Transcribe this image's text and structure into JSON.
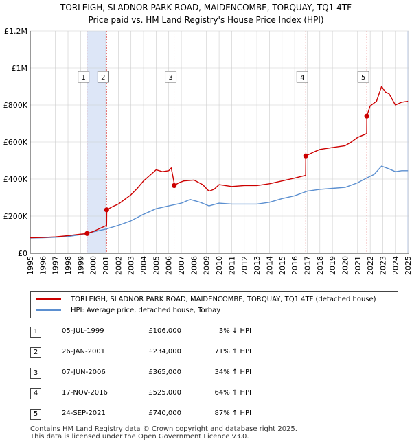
{
  "chart_data": {
    "type": "line",
    "title": "TORLEIGH, SLADNOR PARK ROAD, MAIDENCOMBE, TORQUAY, TQ1 4TF",
    "subtitle": "Price paid vs. HM Land Registry's House Price Index (HPI)",
    "xlabel": "",
    "ylabel": "",
    "xlim": [
      1995,
      2025.1
    ],
    "ylim": [
      0,
      1200000
    ],
    "x_ticks": [
      1995,
      1996,
      1997,
      1998,
      1999,
      2000,
      2001,
      2002,
      2003,
      2004,
      2005,
      2006,
      2007,
      2008,
      2009,
      2010,
      2011,
      2012,
      2013,
      2014,
      2015,
      2016,
      2017,
      2018,
      2019,
      2020,
      2021,
      2022,
      2023,
      2024,
      2025
    ],
    "y_ticks": [
      {
        "value": 0,
        "label": "£0"
      },
      {
        "value": 200000,
        "label": "£200K"
      },
      {
        "value": 400000,
        "label": "£400K"
      },
      {
        "value": 600000,
        "label": "£600K"
      },
      {
        "value": 800000,
        "label": "£800K"
      },
      {
        "value": 1000000,
        "label": "£1M"
      },
      {
        "value": 1200000,
        "label": "£1.2M"
      }
    ],
    "grid": true,
    "series": [
      {
        "name": "TORLEIGH, SLADNOR PARK ROAD, MAIDENCOMBE, TORQUAY, TQ1 4TF (detached house)",
        "color": "#cc0000",
        "points": [
          [
            1995,
            83000
          ],
          [
            1996,
            85000
          ],
          [
            1997,
            88000
          ],
          [
            1998,
            95000
          ],
          [
            1999,
            103000
          ],
          [
            1999.51,
            106000
          ],
          [
            2000,
            117000
          ],
          [
            2001.07,
            150000
          ],
          [
            2001.08,
            234000
          ],
          [
            2001.5,
            250000
          ],
          [
            2002,
            265000
          ],
          [
            2002.5,
            290000
          ],
          [
            2003,
            315000
          ],
          [
            2003.5,
            350000
          ],
          [
            2004,
            390000
          ],
          [
            2004.5,
            420000
          ],
          [
            2005,
            450000
          ],
          [
            2005.5,
            440000
          ],
          [
            2006,
            445000
          ],
          [
            2006.2,
            460000
          ],
          [
            2006.43,
            380000
          ],
          [
            2006.44,
            365000
          ],
          [
            2006.8,
            380000
          ],
          [
            2007.2,
            390000
          ],
          [
            2008,
            395000
          ],
          [
            2008.7,
            370000
          ],
          [
            2009.2,
            335000
          ],
          [
            2009.6,
            345000
          ],
          [
            2010,
            370000
          ],
          [
            2011,
            360000
          ],
          [
            2012,
            365000
          ],
          [
            2013,
            365000
          ],
          [
            2014,
            375000
          ],
          [
            2015,
            390000
          ],
          [
            2016,
            405000
          ],
          [
            2016.87,
            420000
          ],
          [
            2016.88,
            525000
          ],
          [
            2017.5,
            545000
          ],
          [
            2018,
            560000
          ],
          [
            2019,
            570000
          ],
          [
            2020,
            580000
          ],
          [
            2020.5,
            600000
          ],
          [
            2021,
            625000
          ],
          [
            2021.72,
            645000
          ],
          [
            2021.73,
            740000
          ],
          [
            2022,
            795000
          ],
          [
            2022.5,
            820000
          ],
          [
            2022.9,
            900000
          ],
          [
            2023.2,
            870000
          ],
          [
            2023.5,
            860000
          ],
          [
            2024,
            800000
          ],
          [
            2024.5,
            815000
          ],
          [
            2025,
            820000
          ]
        ]
      },
      {
        "name": "HPI: Average price, detached house, Torbay",
        "color": "#5b8fd0",
        "points": [
          [
            1995,
            82000
          ],
          [
            1996,
            83000
          ],
          [
            1997,
            86000
          ],
          [
            1998,
            90000
          ],
          [
            1999,
            100000
          ],
          [
            2000,
            115000
          ],
          [
            2001,
            130000
          ],
          [
            2002,
            150000
          ],
          [
            2003,
            175000
          ],
          [
            2004,
            210000
          ],
          [
            2005,
            240000
          ],
          [
            2006,
            255000
          ],
          [
            2007,
            270000
          ],
          [
            2007.7,
            290000
          ],
          [
            2008.5,
            275000
          ],
          [
            2009.2,
            255000
          ],
          [
            2010,
            270000
          ],
          [
            2011,
            265000
          ],
          [
            2012,
            265000
          ],
          [
            2013,
            265000
          ],
          [
            2014,
            275000
          ],
          [
            2015,
            295000
          ],
          [
            2016,
            310000
          ],
          [
            2017,
            335000
          ],
          [
            2018,
            345000
          ],
          [
            2019,
            350000
          ],
          [
            2020,
            355000
          ],
          [
            2021,
            380000
          ],
          [
            2021.7,
            405000
          ],
          [
            2022.3,
            425000
          ],
          [
            2022.9,
            470000
          ],
          [
            2023.5,
            455000
          ],
          [
            2024,
            440000
          ],
          [
            2024.5,
            445000
          ],
          [
            2025,
            445000
          ]
        ]
      }
    ],
    "markers": [
      {
        "label": "1",
        "x": 1999.51,
        "y": 106000
      },
      {
        "label": "2",
        "x": 2001.07,
        "y": 234000
      },
      {
        "label": "3",
        "x": 2006.43,
        "y": 365000
      },
      {
        "label": "4",
        "x": 2016.88,
        "y": 525000
      },
      {
        "label": "5",
        "x": 2021.73,
        "y": 740000
      }
    ],
    "shaded_spans": [
      [
        1999.51,
        2001.07
      ],
      [
        2006.43,
        2006.43
      ],
      [
        2016.88,
        2016.88
      ],
      [
        2021.73,
        2021.73
      ],
      [
        2024.9,
        2025.1
      ]
    ]
  },
  "legend": {
    "property_label": "TORLEIGH, SLADNOR PARK ROAD, MAIDENCOMBE, TORQUAY, TQ1 4TF (detached house)",
    "hpi_label": "HPI: Average price, detached house, Torbay"
  },
  "sales": [
    {
      "num": "1",
      "date": "05-JUL-1999",
      "price": "£106,000",
      "hpi": "3% ↓ HPI"
    },
    {
      "num": "2",
      "date": "26-JAN-2001",
      "price": "£234,000",
      "hpi": "71% ↑ HPI"
    },
    {
      "num": "3",
      "date": "07-JUN-2006",
      "price": "£365,000",
      "hpi": "34% ↑ HPI"
    },
    {
      "num": "4",
      "date": "17-NOV-2016",
      "price": "£525,000",
      "hpi": "64% ↑ HPI"
    },
    {
      "num": "5",
      "date": "24-SEP-2021",
      "price": "£740,000",
      "hpi": "87% ↑ HPI"
    }
  ],
  "footer": {
    "line1": "Contains HM Land Registry data © Crown copyright and database right 2025.",
    "line2": "This data is licensed under the Open Government Licence v3.0."
  },
  "colors": {
    "property": "#cc0000",
    "hpi": "#5b8fd0",
    "shade": "#dde6f7",
    "grid": "#cccccc"
  }
}
